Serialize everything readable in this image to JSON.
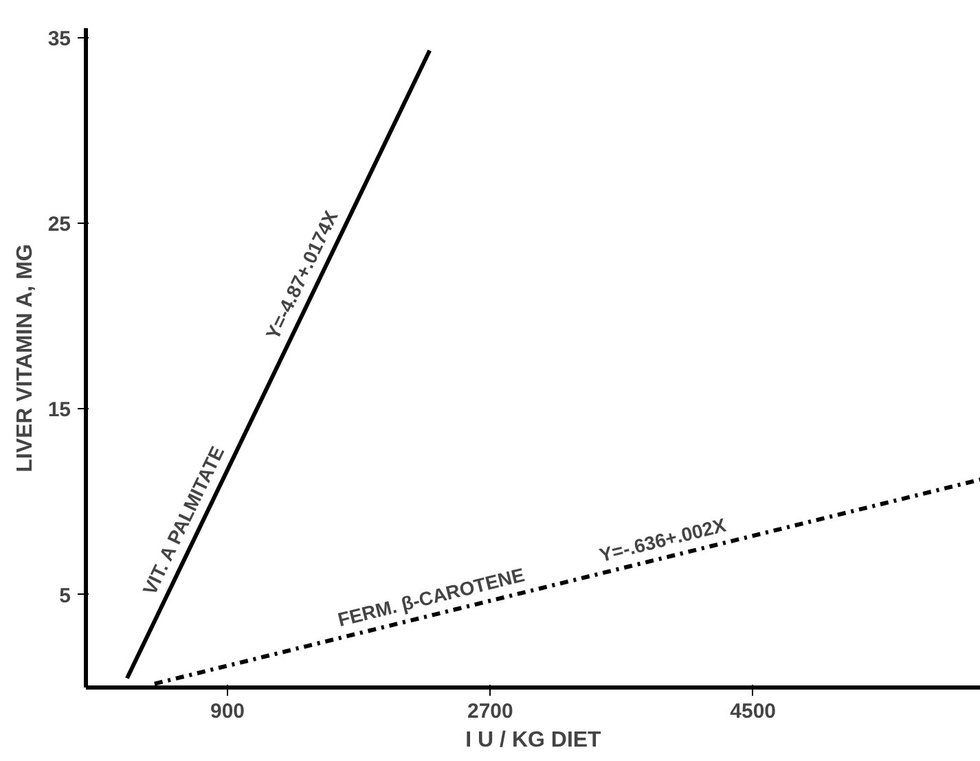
{
  "chart_data": {
    "type": "line",
    "xlabel": "I U / KG DIET",
    "ylabel": "LIVER VITAMIN A, MG",
    "xlim": [
      -70,
      6060
    ],
    "ylim": [
      0,
      35.5
    ],
    "xticks": [
      900,
      2700,
      4500
    ],
    "yticks": [
      5,
      15,
      25,
      35
    ],
    "grid": false,
    "marker": "none",
    "series": [
      {
        "color": "#000000",
        "line_style": "solid",
        "x": [
          212,
          2285
        ],
        "values": [
          0.5,
          34.3
        ]
      },
      {
        "color": "#000000",
        "line_style": "dashdot",
        "x": [
          400,
          6060
        ],
        "values": [
          0.2,
          11.2
        ]
      }
    ],
    "annotations": [
      "VIT. A PALMITATE",
      "Y=-4.87+.0174X",
      "FERM. β-CAROTENE",
      "Y=-.636+.002X"
    ]
  }
}
